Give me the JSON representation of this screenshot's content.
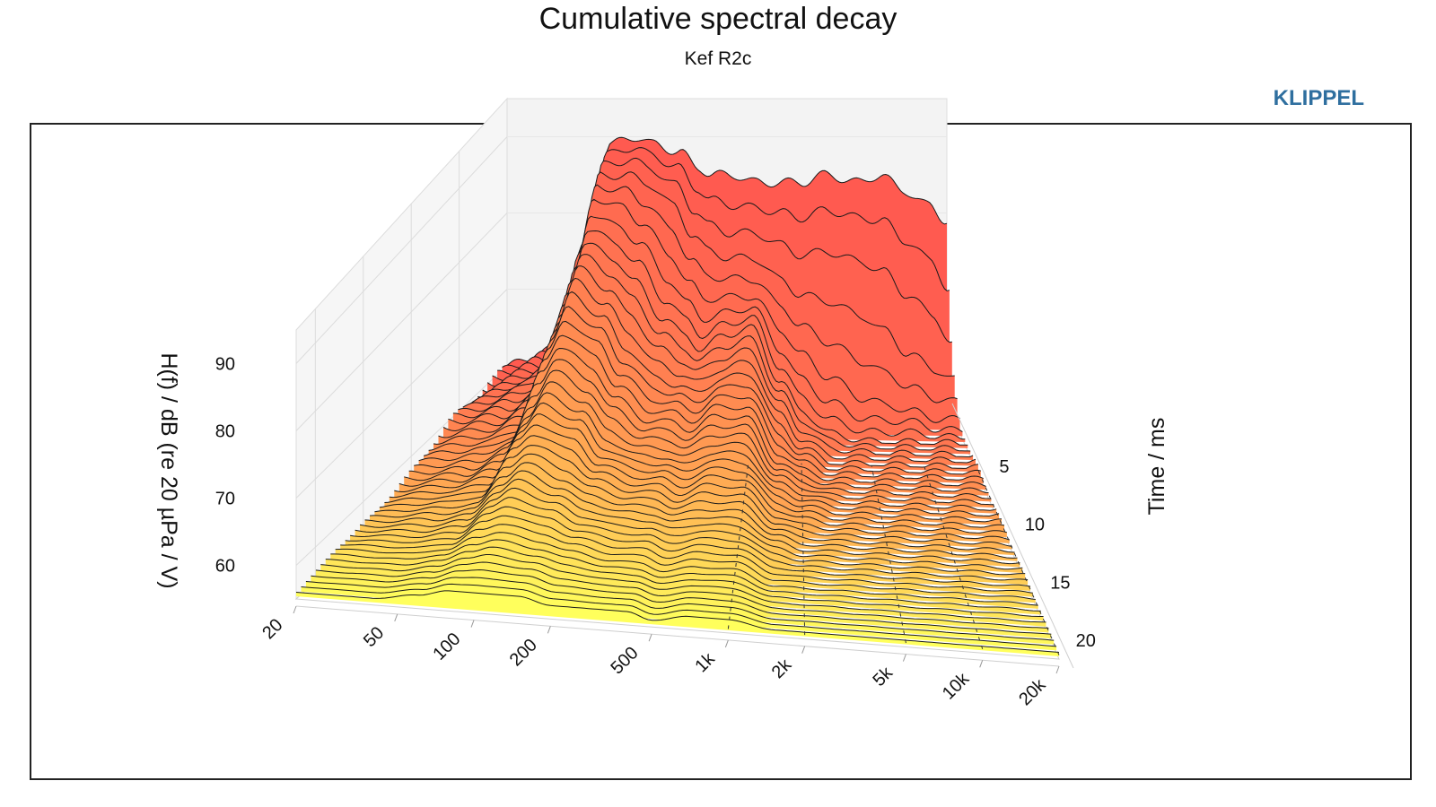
{
  "header": {
    "title": "Cumulative spectral decay",
    "subtitle": "Kef R2c",
    "brand": "KLIPPEL"
  },
  "chart_data": {
    "type": "waterfall",
    "title": "Cumulative spectral decay",
    "subtitle": "Kef R2c",
    "xlabel": "",
    "ylabel": "Time / ms",
    "zlabel": "H(f) / dB (re 20 µPa / V)",
    "x_scale": "log",
    "x_range_hz": [
      20,
      20000
    ],
    "x_ticks": [
      {
        "value": 20,
        "label": "20"
      },
      {
        "value": 50,
        "label": "50"
      },
      {
        "value": 100,
        "label": "100"
      },
      {
        "value": 200,
        "label": "200"
      },
      {
        "value": 500,
        "label": "500"
      },
      {
        "value": 1000,
        "label": "1k"
      },
      {
        "value": 2000,
        "label": "2k"
      },
      {
        "value": 5000,
        "label": "5k"
      },
      {
        "value": 10000,
        "label": "10k"
      },
      {
        "value": 20000,
        "label": "20k"
      }
    ],
    "y_range_ms": [
      0,
      22
    ],
    "y_ticks": [
      {
        "value": 5,
        "label": "5"
      },
      {
        "value": 10,
        "label": "10"
      },
      {
        "value": 15,
        "label": "15"
      },
      {
        "value": 20,
        "label": "20"
      }
    ],
    "z_range_db": [
      55,
      95
    ],
    "z_ticks": [
      {
        "value": 60,
        "label": "60"
      },
      {
        "value": 70,
        "label": "70"
      },
      {
        "value": 80,
        "label": "80"
      },
      {
        "value": 90,
        "label": "90"
      }
    ],
    "color_scale": [
      "#ff5a50",
      "#ffa552",
      "#ffff5c"
    ],
    "grid": true,
    "slices": [
      {
        "t_ms": 0.0,
        "f": [
          20,
          40,
          60,
          80,
          100,
          150,
          200,
          300,
          400,
          500,
          700,
          1000,
          1500,
          2000,
          3000,
          5000,
          7000,
          10000,
          15000,
          20000
        ],
        "db": [
          60,
          62,
          66,
          80,
          89,
          90,
          89,
          88,
          86,
          85,
          85,
          84,
          84,
          84,
          85,
          84,
          85,
          83,
          81,
          79
        ]
      },
      {
        "t_ms": 0.8,
        "f": [
          20,
          40,
          60,
          80,
          100,
          150,
          200,
          300,
          400,
          500,
          700,
          1000,
          1500,
          2000,
          3000,
          5000,
          7000,
          10000,
          15000,
          20000
        ],
        "db": [
          60,
          62,
          66,
          80,
          88,
          89,
          88,
          86,
          83,
          81,
          80,
          80,
          79,
          78,
          79,
          78,
          77,
          74,
          71,
          66
        ]
      },
      {
        "t_ms": 1.6,
        "f": [
          20,
          40,
          60,
          80,
          100,
          150,
          200,
          300,
          400,
          500,
          700,
          1000,
          1500,
          2000,
          3000,
          5000,
          7000,
          10000,
          15000,
          20000
        ],
        "db": [
          60,
          62,
          65,
          79,
          87,
          87,
          86,
          83,
          79,
          77,
          76,
          76,
          73,
          71,
          70,
          68,
          66,
          63,
          61,
          60
        ]
      },
      {
        "t_ms": 2.4,
        "f": [
          20,
          40,
          60,
          80,
          100,
          150,
          200,
          300,
          400,
          500,
          700,
          1000,
          1500,
          2000,
          3000,
          5000,
          7000,
          10000,
          15000,
          20000
        ],
        "db": [
          60,
          62,
          65,
          78,
          86,
          85,
          83,
          79,
          75,
          73,
          73,
          73,
          69,
          66,
          63,
          60,
          59,
          58,
          57,
          57
        ]
      },
      {
        "t_ms": 3.2,
        "f": [
          20,
          40,
          60,
          80,
          100,
          150,
          200,
          300,
          400,
          500,
          700,
          1000,
          1500,
          2000,
          3000,
          5000,
          7000,
          10000,
          15000,
          20000
        ],
        "db": [
          60,
          62,
          64,
          76,
          84,
          82,
          80,
          75,
          72,
          70,
          71,
          72,
          66,
          62,
          59,
          57,
          57,
          57,
          56,
          56
        ]
      },
      {
        "t_ms": 4.0,
        "f": [
          20,
          40,
          60,
          80,
          100,
          150,
          200,
          300,
          400,
          500,
          700,
          1000,
          1500,
          2000,
          3000,
          5000,
          7000,
          10000,
          15000,
          20000
        ],
        "db": [
          60,
          62,
          64,
          75,
          82,
          80,
          77,
          72,
          70,
          68,
          70,
          71,
          64,
          60,
          57,
          56,
          56,
          56,
          56,
          56
        ]
      },
      {
        "t_ms": 6.0,
        "f": [
          20,
          40,
          60,
          80,
          100,
          150,
          200,
          300,
          400,
          500,
          700,
          1000,
          1500,
          2000,
          3000,
          5000,
          7000,
          10000,
          15000,
          20000
        ],
        "db": [
          60,
          61,
          63,
          73,
          78,
          75,
          71,
          67,
          66,
          65,
          67,
          68,
          61,
          58,
          56,
          56,
          56,
          56,
          56,
          56
        ]
      },
      {
        "t_ms": 8.0,
        "f": [
          20,
          40,
          60,
          80,
          100,
          150,
          200,
          300,
          400,
          500,
          700,
          1000,
          1500,
          2000,
          3000,
          5000,
          7000,
          10000,
          15000,
          20000
        ],
        "db": [
          59,
          60,
          62,
          70,
          74,
          71,
          67,
          64,
          64,
          63,
          65,
          65,
          59,
          57,
          56,
          56,
          56,
          56,
          56,
          56
        ]
      },
      {
        "t_ms": 10.0,
        "f": [
          20,
          40,
          60,
          80,
          100,
          150,
          200,
          300,
          400,
          500,
          700,
          1000,
          1500,
          2000,
          3000,
          5000,
          7000,
          10000,
          15000,
          20000
        ],
        "db": [
          58,
          59,
          61,
          67,
          70,
          68,
          64,
          62,
          62,
          61,
          63,
          63,
          58,
          57,
          56,
          56,
          56,
          56,
          56,
          56
        ]
      },
      {
        "t_ms": 14.0,
        "f": [
          20,
          40,
          60,
          80,
          100,
          150,
          200,
          300,
          400,
          500,
          700,
          1000,
          1500,
          2000,
          3000,
          5000,
          7000,
          10000,
          15000,
          20000
        ],
        "db": [
          57,
          58,
          59,
          63,
          65,
          63,
          61,
          60,
          60,
          59,
          60,
          60,
          57,
          56,
          56,
          56,
          56,
          56,
          56,
          56
        ]
      },
      {
        "t_ms": 18.0,
        "f": [
          20,
          40,
          60,
          80,
          100,
          150,
          200,
          300,
          400,
          500,
          700,
          1000,
          1500,
          2000,
          3000,
          5000,
          7000,
          10000,
          15000,
          20000
        ],
        "db": [
          57,
          57,
          58,
          60,
          61,
          60,
          59,
          58,
          58,
          57,
          58,
          58,
          56,
          56,
          56,
          56,
          56,
          56,
          56,
          56
        ]
      },
      {
        "t_ms": 22.0,
        "f": [
          20,
          40,
          60,
          80,
          100,
          150,
          200,
          300,
          400,
          500,
          700,
          1000,
          1500,
          2000,
          3000,
          5000,
          7000,
          10000,
          15000,
          20000
        ],
        "db": [
          56,
          56,
          57,
          58,
          58,
          58,
          57,
          57,
          57,
          56,
          57,
          57,
          56,
          56,
          56,
          56,
          56,
          56,
          56,
          56
        ]
      }
    ]
  }
}
